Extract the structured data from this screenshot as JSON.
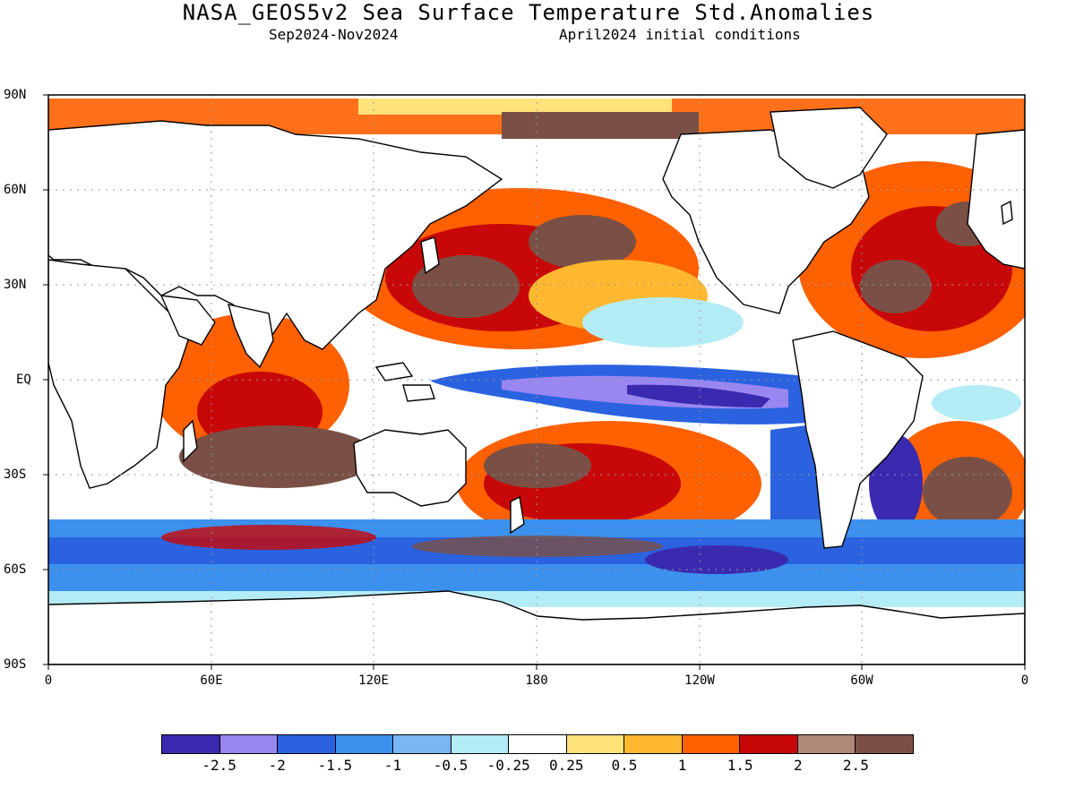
{
  "title": "NASA_GEOS5v2 Sea Surface Temperature Std.Anomalies",
  "subtitle_left": "Sep2024-Nov2024",
  "subtitle_right": "April2024 initial conditions",
  "lat_labels": [
    "90N",
    "60N",
    "30N",
    "EQ",
    "30S",
    "60S",
    "90S"
  ],
  "lon_labels": [
    "0",
    "60E",
    "120E",
    "180",
    "120W",
    "60W",
    "0"
  ],
  "colorbar": {
    "colors": [
      "#3a2ab0",
      "#9a86f0",
      "#2a62e0",
      "#3c90ee",
      "#78b6f4",
      "#b4ecf6",
      "#ffffff",
      "#ffe27a",
      "#ffb830",
      "#ff6000",
      "#c80808",
      "#b08878",
      "#7a5046"
    ],
    "labels": [
      "-2.5",
      "-2",
      "-1.5",
      "-1",
      "-0.5",
      "-0.25",
      "0.25",
      "0.5",
      "1",
      "1.5",
      "2",
      "2.5"
    ]
  }
}
